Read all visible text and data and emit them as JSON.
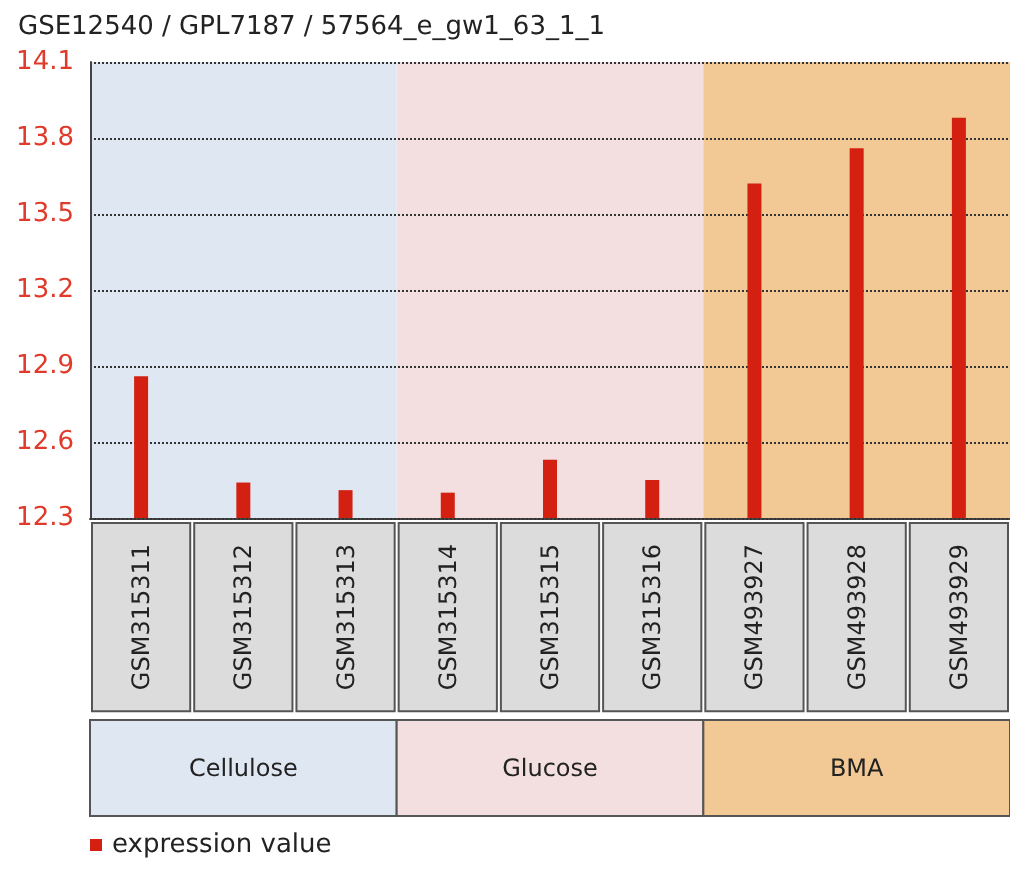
{
  "chart_data": {
    "type": "bar",
    "title": "GSE12540 / GPL7187 / 57564_e_gw1_63_1_1",
    "categories": [
      "GSM315311",
      "GSM315312",
      "GSM315313",
      "GSM315314",
      "GSM315315",
      "GSM315316",
      "GSM493927",
      "GSM493928",
      "GSM493929"
    ],
    "series": [
      {
        "name": "expression value",
        "color": "#d42010",
        "values": [
          12.86,
          12.44,
          12.41,
          12.4,
          12.53,
          12.45,
          13.62,
          13.76,
          13.88
        ]
      }
    ],
    "ylim": [
      12.3,
      14.1
    ],
    "yticks": [
      12.3,
      12.6,
      12.9,
      13.2,
      13.5,
      13.8,
      14.1
    ],
    "grid": "y",
    "legend": "bottom left",
    "annotations": [
      "Cellulose",
      "Glucose",
      "BMA"
    ],
    "bands": [
      {
        "axis": "x",
        "from": "GSM315311",
        "to": "GSM315313",
        "color": "#dfe8f2"
      },
      {
        "axis": "x",
        "from": "GSM315314",
        "to": "GSM315316",
        "color": "#f3dfe0"
      },
      {
        "axis": "x",
        "from": "GSM493927",
        "to": "GSM493929",
        "color": "#f2c894"
      }
    ]
  }
}
